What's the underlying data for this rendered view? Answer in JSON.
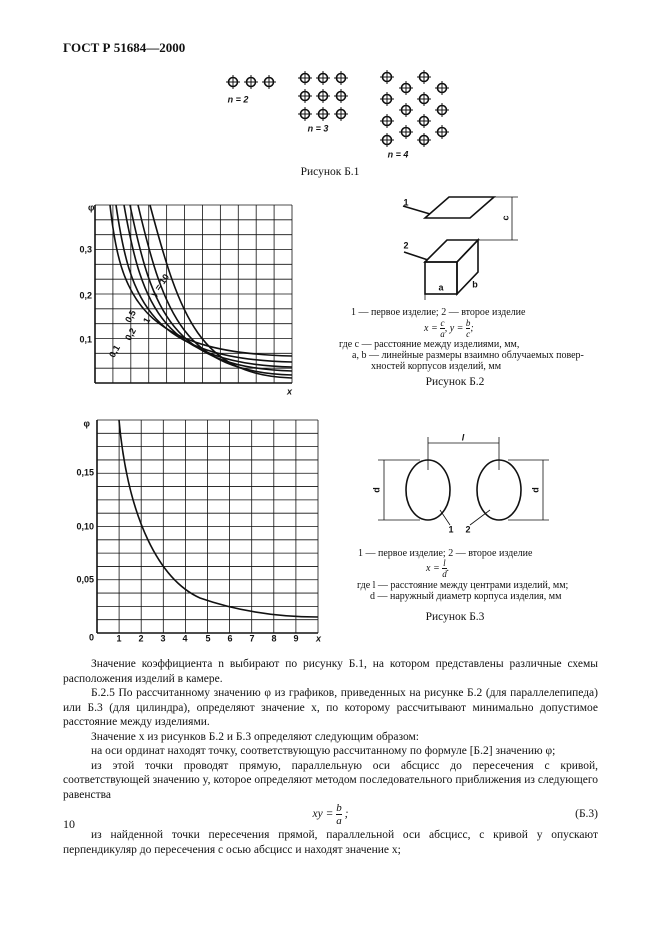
{
  "header": {
    "title": "ГОСТ Р 51684—2000"
  },
  "figure_b1": {
    "labels": [
      "n = 2",
      "n = 3",
      "n = 4"
    ],
    "caption": "Рисунок Б.1"
  },
  "figure_b2": {
    "graph": {
      "y_axis": "φ",
      "y_ticks": [
        "0,3",
        "0,2",
        "0,1"
      ],
      "x_axis": "x",
      "curve_labels": [
        "y = 10",
        "0,5",
        "1",
        "0,2",
        "0,1"
      ]
    },
    "diagram": {
      "items": [
        "1",
        "2"
      ],
      "dims": [
        "c",
        "a",
        "b"
      ]
    },
    "legend": {
      "line1": "1 — первое изделие; 2 — второе изделие",
      "formula": {
        "x": "x =",
        "x_num": "c",
        "x_den": "a",
        "sep": ",",
        "y": "y =",
        "y_num": "b",
        "y_den": "c",
        "end": ";"
      },
      "lines": [
        "где c — расстояние между изделиями, мм,",
        "a, b — линейные размеры взаимно облучаемых повер-",
        "хностей корпусов изделий, мм"
      ]
    },
    "caption": "Рисунок Б.2"
  },
  "figure_b3": {
    "graph": {
      "y_axis": "φ",
      "y_ticks": [
        "0,15",
        "0,10",
        "0,05",
        "0"
      ],
      "x_ticks": [
        "1",
        "2",
        "3",
        "4",
        "5",
        "6",
        "7",
        "8",
        "9"
      ],
      "x_axis": "x"
    },
    "diagram": {
      "items": [
        "1",
        "2"
      ],
      "dims": [
        "l",
        "d",
        "d"
      ]
    },
    "legend": {
      "line1": "1 — первое изделие; 2 — второе изделие",
      "formula": {
        "x": "x =",
        "num": "l",
        "den": "d",
        "end": "."
      },
      "lines": [
        "где l — расстояние между центрами изделий, мм;",
        "d — наружный диаметр корпуса изделия, мм"
      ]
    },
    "caption": "Рисунок Б.3"
  },
  "body": {
    "paragraphs": [
      "Значение коэффициента n выбирают по рисунку Б.1, на котором представлены различные схемы расположения изделий в камере.",
      "Б.2.5 По рассчитанному значению φ из графиков, приведенных на рисунке Б.2 (для параллелепипеда) или Б.3 (для цилиндра), определяют значение x, по которому рассчитывают минимально допустимое расстояние между изделиями.",
      "Значение x из рисунков Б.2 и Б.3 определяют следующим образом:",
      "на оси ординат находят точку, соответствующую рассчитанному по формуле [Б.2] значению φ;",
      "из этой точки проводят прямую, параллельную оси абсцисс до пересечения с кривой, соответствующей значению y, которое определяют методом последовательного приближения из следующего равенства"
    ],
    "formula": {
      "lhs": "xy =",
      "num": "b",
      "den": "a",
      "end": ";",
      "number": "(Б.3)"
    },
    "last": "из найденной точки пересечения прямой, параллельной оси абсцисс, с кривой y опускают перпендикуляр до пересечения с осью абсцисс и находят значение x;"
  },
  "footer": {
    "page": "10"
  }
}
